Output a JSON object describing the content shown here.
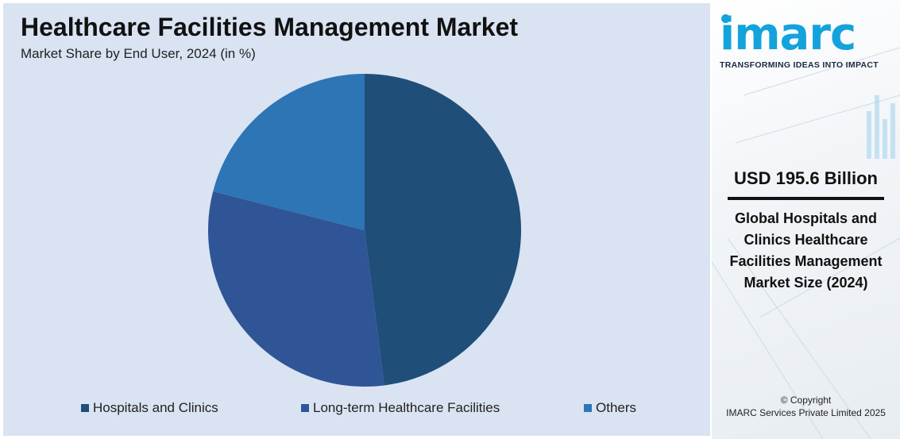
{
  "header": {
    "title": "Healthcare Facilities Management Market",
    "subtitle": "Market Share by End User, 2024 (in %)"
  },
  "chart_data": {
    "type": "pie",
    "categories": [
      "Hospitals and Clinics",
      "Long-term Healthcare Facilities",
      "Others"
    ],
    "values": [
      48,
      31,
      21
    ],
    "colors": [
      "#1f4e79",
      "#2f5597",
      "#2e75b6"
    ],
    "legend_position": "bottom",
    "title": "Healthcare Facilities Management Market"
  },
  "sidebar": {
    "logo_text": "imarc",
    "logo_tagline": "TRANSFORMING IDEAS INTO IMPACT",
    "market_value": "USD 195.6 Billion",
    "market_description": "Global Hospitals and Clinics Healthcare Facilities Management Market Size (2024)",
    "copyright_line1": "© Copyright",
    "copyright_line2": "IMARC Services Private Limited 2025"
  }
}
